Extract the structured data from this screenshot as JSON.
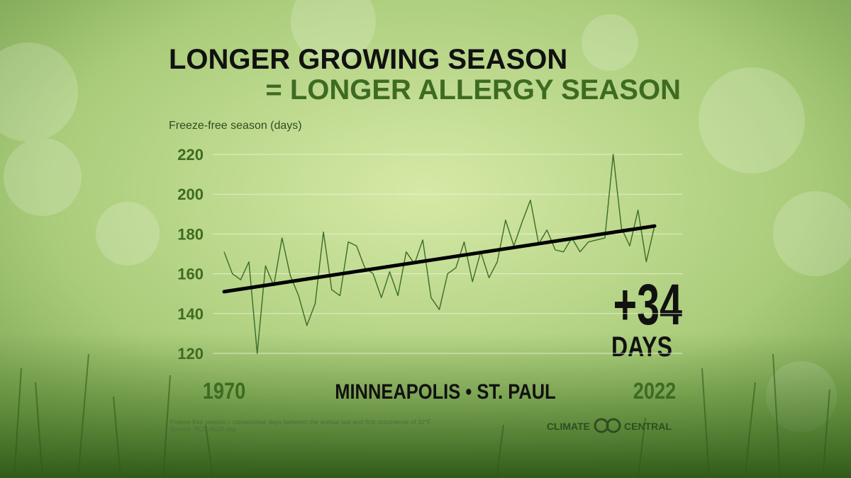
{
  "chart_data": {
    "type": "line",
    "title": "LONGER GROWING SEASON",
    "subtitle": "= LONGER ALLERGY SEASON",
    "y_label": "Freeze-free season (days)",
    "location": "MINNEAPOLIS • ST. PAUL",
    "annotation": {
      "change": "+34",
      "unit": "DAYS"
    },
    "footnote": [
      "Freeze-free season = consecutive days between the annual last and first occurrence of 32°F",
      "Source: RCC-ACIS.org"
    ],
    "logo": [
      "CLIMATE",
      "CENTRAL"
    ],
    "x": [
      1970,
      1971,
      1972,
      1973,
      1974,
      1975,
      1976,
      1977,
      1978,
      1979,
      1980,
      1981,
      1982,
      1983,
      1984,
      1985,
      1986,
      1987,
      1988,
      1989,
      1990,
      1991,
      1992,
      1993,
      1994,
      1995,
      1996,
      1997,
      1998,
      1999,
      2000,
      2001,
      2002,
      2003,
      2004,
      2005,
      2006,
      2007,
      2008,
      2009,
      2010,
      2011,
      2012,
      2013,
      2014,
      2015,
      2016,
      2017,
      2018,
      2019,
      2020,
      2021,
      2022
    ],
    "series": [
      {
        "color": "#3b6b2a",
        "values": [
          171,
          160,
          157,
          166,
          120,
          164,
          154,
          178,
          159,
          149,
          134,
          145,
          181,
          152,
          149,
          176,
          174,
          163,
          160,
          148,
          161,
          149,
          171,
          165,
          177,
          148,
          142,
          160,
          163,
          176,
          156,
          171,
          158,
          166,
          187,
          174,
          186,
          197,
          175,
          182,
          172,
          171,
          178,
          171,
          176,
          177,
          178,
          220,
          183,
          174,
          192,
          166,
          184
        ]
      }
    ],
    "trend": {
      "color": "#000000",
      "x": [
        1970,
        2022
      ],
      "values": [
        151,
        184
      ]
    },
    "xlim": [
      1970,
      2022
    ],
    "xticks": [
      1970,
      2022
    ],
    "ylim": [
      120,
      220
    ],
    "yticks": [
      120,
      140,
      160,
      180,
      200,
      220
    ],
    "grid": true
  }
}
